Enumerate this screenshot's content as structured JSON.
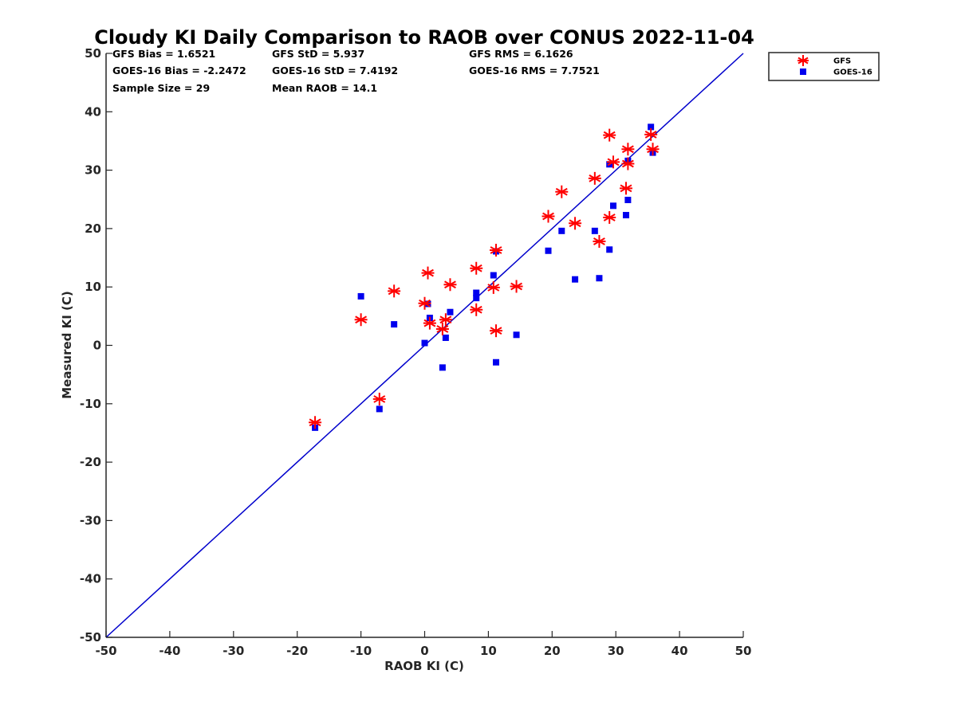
{
  "chart_data": {
    "type": "scatter",
    "title": "Cloudy KI Daily Comparison to RAOB over CONUS 2022-11-04",
    "xlabel": "RAOB KI (C)",
    "ylabel": "Measured KI (C)",
    "xlim": [
      -50,
      50
    ],
    "ylim": [
      -50,
      50
    ],
    "xticks": [
      -50,
      -40,
      -30,
      -20,
      -10,
      0,
      10,
      20,
      30,
      40,
      50
    ],
    "yticks": [
      -50,
      -40,
      -30,
      -20,
      -10,
      0,
      10,
      20,
      30,
      40,
      50
    ],
    "grid": false,
    "legend_position": "top-right-outside",
    "reference_line": {
      "from": [
        -50,
        -50
      ],
      "to": [
        50,
        50
      ],
      "color": "#0000cc"
    },
    "stats": [
      [
        "GFS Bias = 1.6521",
        "GFS StD = 5.937",
        "GFS RMS = 6.1626"
      ],
      [
        "GOES-16 Bias = -2.2472",
        "GOES-16 StD = 7.4192",
        "GOES-16 RMS = 7.7521"
      ],
      [
        "Sample Size = 29",
        "Mean RAOB = 14.1",
        ""
      ]
    ],
    "series": [
      {
        "name": "GFS",
        "marker": "asterisk",
        "color": "#ff0000",
        "points": [
          [
            -17.2,
            -13.2
          ],
          [
            -10.0,
            4.4
          ],
          [
            -7.1,
            -9.2
          ],
          [
            -4.8,
            9.3
          ],
          [
            0.0,
            7.2
          ],
          [
            0.5,
            12.4
          ],
          [
            0.8,
            3.8
          ],
          [
            2.8,
            2.8
          ],
          [
            3.3,
            4.4
          ],
          [
            4.0,
            10.4
          ],
          [
            8.1,
            13.2
          ],
          [
            8.1,
            6.1
          ],
          [
            10.8,
            9.9
          ],
          [
            11.2,
            16.3
          ],
          [
            11.2,
            2.5
          ],
          [
            14.4,
            10.1
          ],
          [
            19.4,
            22.1
          ],
          [
            21.5,
            26.3
          ],
          [
            23.6,
            20.9
          ],
          [
            26.7,
            28.6
          ],
          [
            27.4,
            17.8
          ],
          [
            29.0,
            36.0
          ],
          [
            29.0,
            21.9
          ],
          [
            29.6,
            31.4
          ],
          [
            31.6,
            26.9
          ],
          [
            31.9,
            33.6
          ],
          [
            31.9,
            31.1
          ],
          [
            35.5,
            36.1
          ],
          [
            35.8,
            33.6
          ]
        ]
      },
      {
        "name": "GOES-16",
        "marker": "square",
        "color": "#0000ee",
        "points": [
          [
            -17.2,
            -14.1
          ],
          [
            -10.0,
            8.4
          ],
          [
            -7.1,
            -10.9
          ],
          [
            -4.8,
            3.6
          ],
          [
            0.0,
            0.4
          ],
          [
            0.5,
            7.1
          ],
          [
            0.8,
            4.7
          ],
          [
            2.8,
            -3.8
          ],
          [
            3.3,
            1.3
          ],
          [
            4.0,
            5.7
          ],
          [
            8.1,
            9.0
          ],
          [
            8.1,
            8.1
          ],
          [
            10.8,
            12.0
          ],
          [
            11.2,
            16.1
          ],
          [
            11.2,
            -2.9
          ],
          [
            14.4,
            1.8
          ],
          [
            19.4,
            16.2
          ],
          [
            21.5,
            19.6
          ],
          [
            23.6,
            11.3
          ],
          [
            26.7,
            19.6
          ],
          [
            27.4,
            11.5
          ],
          [
            29.0,
            31.0
          ],
          [
            29.0,
            16.4
          ],
          [
            29.6,
            23.9
          ],
          [
            31.6,
            22.3
          ],
          [
            31.9,
            24.9
          ],
          [
            31.9,
            31.6
          ],
          [
            35.5,
            37.4
          ],
          [
            35.8,
            33.0
          ]
        ]
      }
    ]
  }
}
